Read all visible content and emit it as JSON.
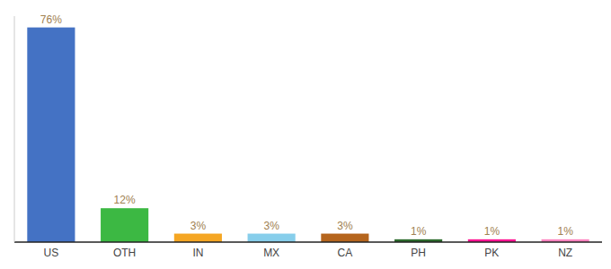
{
  "chart_data": {
    "type": "bar",
    "categories": [
      "US",
      "OTH",
      "IN",
      "MX",
      "CA",
      "PH",
      "PK",
      "NZ"
    ],
    "values": [
      76,
      12,
      3,
      3,
      3,
      1,
      1,
      1
    ],
    "value_labels": [
      "76%",
      "12%",
      "3%",
      "3%",
      "3%",
      "1%",
      "1%",
      "1%"
    ],
    "colors": [
      "#4472c4",
      "#3cb843",
      "#f5a623",
      "#87ceeb",
      "#b5651d",
      "#2d6a2d",
      "#ff1493",
      "#ff85c0"
    ],
    "ylim": [
      0,
      80
    ],
    "grid": false,
    "data_labels": true,
    "tick_labels": "x"
  }
}
